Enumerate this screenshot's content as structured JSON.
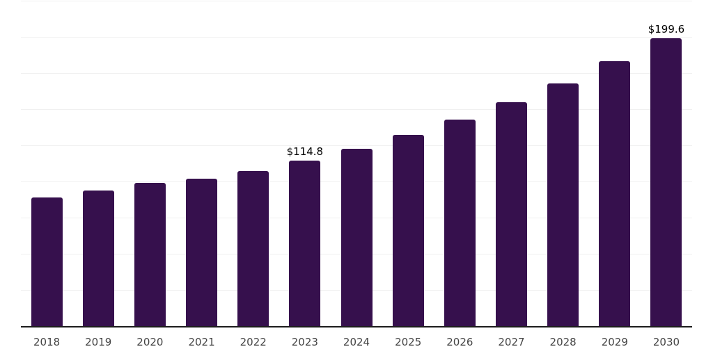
{
  "chart_data": {
    "type": "bar",
    "title": "",
    "xlabel": "",
    "ylabel": "",
    "categories": [
      "2018",
      "2019",
      "2020",
      "2021",
      "2022",
      "2023",
      "2024",
      "2025",
      "2026",
      "2027",
      "2028",
      "2029",
      "2030"
    ],
    "values": [
      89.3,
      94.2,
      99.4,
      102.6,
      107.8,
      114.8,
      123.1,
      132.7,
      143.5,
      155.2,
      168.4,
      183.6,
      199.6
    ],
    "point_labels": [
      "",
      "",
      "",
      "",
      "",
      "$114.8",
      "",
      "",
      "",
      "",
      "",
      "",
      "$199.6"
    ],
    "value_prefix": "$",
    "ylim": [
      0,
      225
    ],
    "gridline_step": 25,
    "grid": "horizontal",
    "legend_position": "none",
    "y_axis_tick_labels_visible": false,
    "colors": {
      "bar": "#36104D",
      "gridline": "#F0F0F0",
      "axis_line": "#1C1C1C",
      "tick_label": "#444444",
      "data_label": "#000000",
      "background": "#FFFFFF"
    }
  }
}
